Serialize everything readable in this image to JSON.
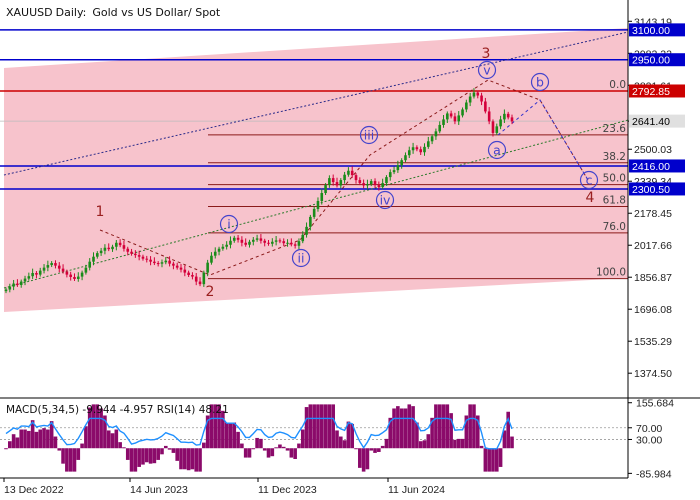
{
  "chart_data": {
    "type": "candlestick",
    "header": {
      "symbol": "XAUUSD",
      "timeframe": "Daily:",
      "description": "Gold vs US Dollar/ Spot"
    },
    "colors": {
      "bull": "#1a8c1a",
      "bear": "#d4003a",
      "channel_fill": "#f7c3cc",
      "level_blue": "#0000cc",
      "level_red": "#cc0000",
      "fib_line": "#8b1a1a",
      "wave_label": "#9a2020",
      "wave_circle": "#4444cc",
      "macd_hist": "#8b0a6a",
      "rsi": "#1e90ff",
      "axis_text": "#222222"
    },
    "price_axis": {
      "range": [
        1280,
        3230
      ],
      "ticks": [
        "3143.19",
        "2982.22",
        "2821.61",
        "2641.40",
        "2500.03",
        "2339.34",
        "2178.45",
        "2017.66",
        "1856.87",
        "1696.08",
        "1535.29",
        "1374.50"
      ],
      "tick_values": [
        3143.19,
        2982.22,
        2821.61,
        2641.4,
        2500.03,
        2339.34,
        2178.45,
        2017.66,
        1856.87,
        1696.08,
        1535.29,
        1374.5
      ]
    },
    "levels": [
      {
        "label": "3100.00",
        "value": 3100,
        "style": "blue"
      },
      {
        "label": "2950.00",
        "value": 2950,
        "style": "blue"
      },
      {
        "label": "2792.85",
        "value": 2792.85,
        "style": "red"
      },
      {
        "label": "2641.40",
        "value": 2641.4,
        "style": "current"
      },
      {
        "label": "2416.00",
        "value": 2416,
        "style": "blue"
      },
      {
        "label": "2300.50",
        "value": 2300.5,
        "style": "blue"
      }
    ],
    "fibonacci": [
      {
        "label": "0.0",
        "value": 2792.85
      },
      {
        "label": "23.6",
        "value": 2572
      },
      {
        "label": "38.2",
        "value": 2432
      },
      {
        "label": "50.0",
        "value": 2322
      },
      {
        "label": "61.8",
        "value": 2212
      },
      {
        "label": "76.0",
        "value": 2080
      },
      {
        "label": "100.0",
        "value": 1850
      }
    ],
    "x_axis": {
      "labels": [
        "13 Dec 2022",
        "14 Jun 2023",
        "11 Dec 2023",
        "11 Jun 2024"
      ]
    },
    "waves": {
      "major": [
        "1",
        "2",
        "3",
        "4"
      ],
      "minor": [
        "i",
        "ii",
        "iii",
        "iv",
        "v"
      ],
      "correction": [
        "a",
        "b",
        "c"
      ]
    },
    "price_series": [
      1795,
      1810,
      1825,
      1818,
      1835,
      1850,
      1862,
      1878,
      1870,
      1890,
      1905,
      1918,
      1928,
      1915,
      1900,
      1885,
      1870,
      1858,
      1848,
      1860,
      1880,
      1905,
      1935,
      1960,
      1978,
      1990,
      2005,
      1998,
      2010,
      2030,
      2018,
      2000,
      1985,
      1975,
      1968,
      1960,
      1950,
      1945,
      1935,
      1928,
      1925,
      1932,
      1940,
      1925,
      1915,
      1905,
      1895,
      1880,
      1868,
      1860,
      1835,
      1822,
      1880,
      1930,
      1965,
      1985,
      2000,
      2010,
      2020,
      2040,
      2055,
      2045,
      2030,
      2020,
      2035,
      2045,
      2052,
      2040,
      2030,
      2025,
      2035,
      2042,
      2038,
      2028,
      2030,
      2022,
      2015,
      2038,
      2070,
      2110,
      2160,
      2200,
      2240,
      2280,
      2320,
      2355,
      2335,
      2318,
      2345,
      2372,
      2392,
      2370,
      2345,
      2330,
      2318,
      2325,
      2340,
      2320,
      2310,
      2330,
      2360,
      2385,
      2395,
      2420,
      2445,
      2470,
      2495,
      2510,
      2500,
      2485,
      2512,
      2540,
      2565,
      2590,
      2622,
      2650,
      2680,
      2665,
      2640,
      2670,
      2700,
      2735,
      2765,
      2785,
      2770,
      2740,
      2690,
      2640,
      2582,
      2615,
      2650,
      2678,
      2660,
      2640
    ],
    "indicator": {
      "label": "MACD(5,34,5) -9.944 -4.957 RSI(14) 48.21",
      "ticks": [
        "155.684",
        "70.00",
        "30.00",
        "-85.984"
      ],
      "tick_values": [
        155.684,
        70.0,
        30.0,
        -85.984
      ],
      "range": [
        -95,
        165
      ]
    }
  }
}
